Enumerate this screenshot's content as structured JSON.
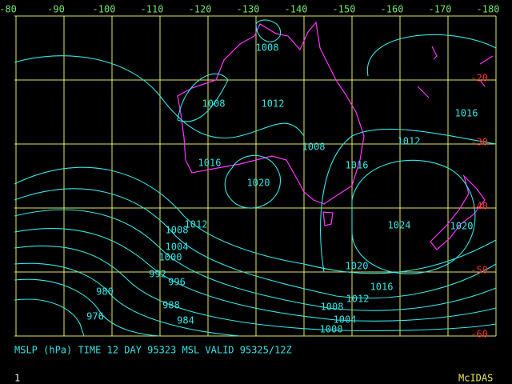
{
  "map": {
    "lon_labels": [
      "-80",
      "-90",
      "-100",
      "-110",
      "-120",
      "-130",
      "-140",
      "-150",
      "-160",
      "-170",
      "-180"
    ],
    "lat_labels": [
      "-20",
      "-30",
      "-40",
      "-50",
      "-60"
    ],
    "contour_labels": [
      "1008",
      "1008",
      "1012",
      "1008",
      "1012",
      "1016",
      "1016",
      "1020",
      "1016",
      "1012",
      "1008",
      "1024",
      "1020",
      "1004",
      "1000",
      "992",
      "996",
      "980",
      "988",
      "976",
      "984",
      "1020",
      "1016",
      "1012",
      "1008",
      "1004",
      "1000"
    ],
    "caption": "MSLP (hPa) TIME 12 DAY 95323 MSL VALID 95325/12Z",
    "frame": "1",
    "brand": "McIDAS"
  }
}
